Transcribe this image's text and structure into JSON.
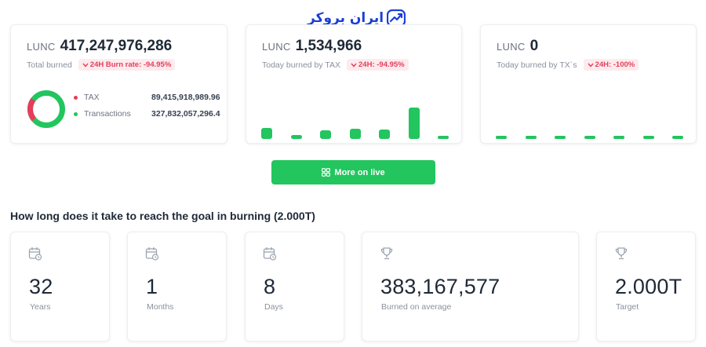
{
  "logo": {
    "text": "ایران بروکر",
    "icon": "chart-trend-icon"
  },
  "colors": {
    "green": "#22c55e",
    "red": "#e53e5a",
    "brand": "#1a3fd6"
  },
  "cards": {
    "total": {
      "currency": "LUNC",
      "value": "417,247,976,286",
      "label": "Total burned",
      "badge": "24H Burn rate: -94.95%",
      "donut": {
        "tax_fraction": 0.21
      },
      "legend": [
        {
          "label": "TAX",
          "value": "89,415,918,989.96",
          "color": "#e53e5a"
        },
        {
          "label": "Transactions",
          "value": "327,832,057,296.4",
          "color": "#22c55e"
        }
      ]
    },
    "tax": {
      "currency": "LUNC",
      "value": "1,534,966",
      "label": "Today burned by TAX",
      "badge": "24H: -94.95%",
      "bar_levels": [
        0.36,
        0.13,
        0.28,
        0.33,
        0.29,
        1.0,
        0.02
      ]
    },
    "tx": {
      "currency": "LUNC",
      "value": "0",
      "label": "Today burned by TX`s",
      "badge": "24H: -100%",
      "bar_levels": [
        0,
        0,
        0,
        0,
        0,
        0,
        0
      ]
    }
  },
  "cta": {
    "label": "More on live"
  },
  "goal": {
    "title": "How long does it take to reach the goal in burning (2.000T)",
    "cards": [
      {
        "value": "32",
        "label": "Years",
        "icon": "calendar-icon"
      },
      {
        "value": "1",
        "label": "Months",
        "icon": "calendar-icon"
      },
      {
        "value": "8",
        "label": "Days",
        "icon": "calendar-icon"
      },
      {
        "value": "383,167,577",
        "label": "Burned on average",
        "icon": "trophy-icon"
      },
      {
        "value": "2.000T",
        "label": "Target",
        "icon": "trophy-icon"
      }
    ]
  }
}
